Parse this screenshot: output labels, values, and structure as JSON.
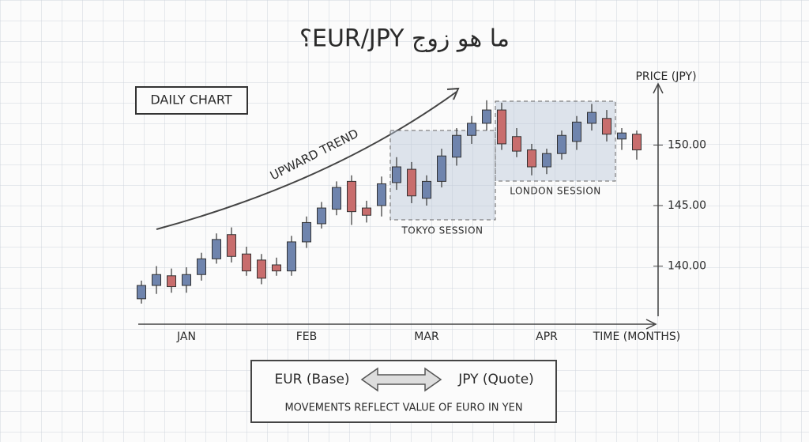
{
  "chart_data": {
    "type": "candlestick",
    "title": "ما هو زوج EUR/JPY؟",
    "ylabel": "PRICE (JPY)",
    "xlabel": "TIME (MONTHS)",
    "annotations": {
      "box": "DAILY CHART",
      "trend": "UPWARD TREND",
      "tokyo": "TOKYO SESSION",
      "london": "LONDON SESSION"
    },
    "footer": {
      "base": "EUR (Base)",
      "quote": "JPY (Quote)",
      "note": "MOVEMENTS REFLECT VALUE OF EURO IN YEN"
    },
    "categories": [
      null,
      null,
      null,
      "JAN",
      null,
      null,
      null,
      null,
      null,
      null,
      null,
      "FEB",
      null,
      null,
      null,
      null,
      null,
      null,
      null,
      "MAR",
      null,
      null,
      null,
      null,
      null,
      null,
      null,
      "APR",
      null,
      null,
      null,
      null,
      null,
      null
    ],
    "open": [
      137.3,
      138.4,
      139.2,
      138.4,
      139.3,
      140.6,
      142.6,
      141.0,
      140.5,
      140.1,
      139.6,
      142.0,
      143.5,
      144.7,
      147.0,
      144.8,
      145.0,
      146.9,
      148.0,
      145.6,
      147.0,
      149.0,
      150.8,
      151.8,
      152.9,
      150.7,
      149.6,
      148.2,
      149.3,
      150.3,
      151.8,
      152.2,
      150.5,
      150.9
    ],
    "high": [
      138.8,
      140.0,
      139.8,
      139.9,
      141.1,
      142.7,
      143.2,
      141.6,
      141.0,
      140.7,
      142.5,
      144.1,
      145.3,
      147.0,
      147.5,
      145.4,
      147.4,
      149.0,
      148.6,
      147.5,
      149.7,
      151.4,
      152.4,
      153.7,
      153.5,
      151.4,
      150.1,
      149.7,
      151.2,
      152.4,
      153.4,
      152.9,
      151.4,
      151.2
    ],
    "low": [
      136.9,
      137.7,
      137.8,
      137.8,
      138.8,
      140.2,
      140.3,
      139.2,
      138.5,
      139.2,
      139.2,
      141.5,
      143.1,
      144.2,
      143.4,
      143.6,
      144.1,
      146.3,
      145.2,
      145.0,
      146.5,
      148.3,
      150.1,
      151.2,
      149.6,
      149.0,
      147.5,
      147.6,
      148.8,
      149.6,
      151.2,
      150.3,
      149.6,
      148.8
    ],
    "close": [
      138.4,
      139.3,
      138.3,
      139.3,
      140.6,
      142.2,
      140.8,
      139.6,
      139.0,
      139.6,
      142.0,
      143.6,
      144.8,
      146.5,
      144.5,
      144.2,
      146.8,
      148.2,
      145.8,
      147.0,
      149.1,
      150.8,
      151.8,
      152.9,
      150.1,
      149.5,
      148.2,
      149.3,
      150.8,
      151.9,
      152.7,
      150.9,
      151.0,
      149.6
    ],
    "up_color": "#6f84ad",
    "down_color": "#c86d6d",
    "ylim": [
      135.2,
      154.8
    ],
    "yticks": [
      {
        "value": 140,
        "label": "140.00"
      },
      {
        "value": 145,
        "label": "145.00"
      },
      {
        "value": 150,
        "label": "150.00"
      }
    ]
  }
}
